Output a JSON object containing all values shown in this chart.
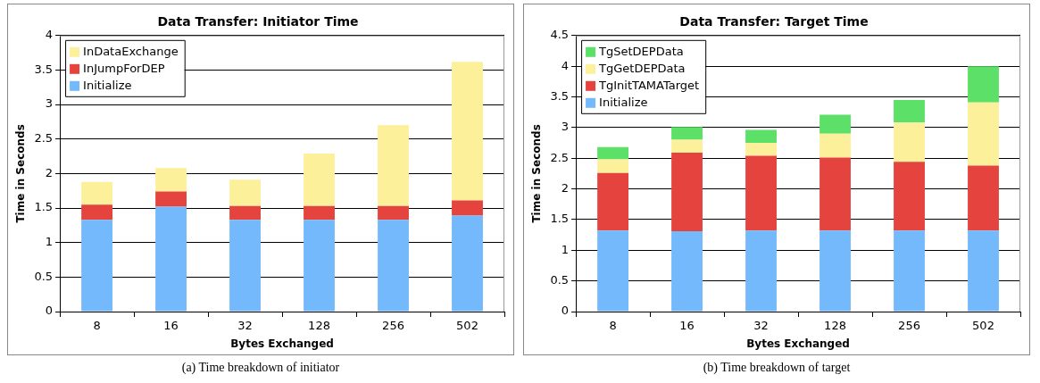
{
  "chart_data": [
    {
      "type": "bar",
      "title": "Data Transfer: Initiator Time",
      "xlabel": "Bytes Exchanged",
      "ylabel": "Time in Seconds",
      "categories": [
        "8",
        "16",
        "32",
        "128",
        "256",
        "502"
      ],
      "stacked": true,
      "ylim": [
        0,
        4
      ],
      "yticks": [
        0,
        0.5,
        1,
        1.5,
        2,
        2.5,
        3,
        3.5,
        4
      ],
      "grid": "y",
      "legend": "top left",
      "annotations": [
        "(a) Time breakdown of initiator"
      ],
      "series": [
        {
          "name": "Initialize",
          "color": "#74b9fc",
          "values": [
            1.33,
            1.52,
            1.33,
            1.33,
            1.33,
            1.39
          ]
        },
        {
          "name": "InJumpForDEP",
          "color": "#e4433e",
          "values": [
            0.22,
            0.22,
            0.2,
            0.2,
            0.2,
            0.22
          ]
        },
        {
          "name": "InDataExchange",
          "color": "#fdf09a",
          "values": [
            0.33,
            0.34,
            0.38,
            0.76,
            1.17,
            2.01
          ]
        }
      ]
    },
    {
      "type": "bar",
      "title": "Data Transfer: Target Time",
      "xlabel": "Bytes Exchanged",
      "ylabel": "Time in Seconds",
      "categories": [
        "8",
        "16",
        "32",
        "128",
        "256",
        "502"
      ],
      "stacked": true,
      "ylim": [
        0,
        4.5
      ],
      "yticks": [
        0,
        0.5,
        1,
        1.5,
        2,
        2.5,
        3,
        3.5,
        4,
        4.5
      ],
      "grid": "y",
      "legend": "top left",
      "annotations": [
        "(b) Time breakdown of target"
      ],
      "series": [
        {
          "name": "Initialize",
          "color": "#74b9fc",
          "values": [
            1.32,
            1.31,
            1.32,
            1.32,
            1.32,
            1.32
          ]
        },
        {
          "name": "TgInitTAMATarget",
          "color": "#e4433e",
          "values": [
            0.94,
            1.28,
            1.22,
            1.19,
            1.12,
            1.06
          ]
        },
        {
          "name": "TgGetDEPData",
          "color": "#fdf09a",
          "values": [
            0.22,
            0.21,
            0.21,
            0.39,
            0.64,
            1.03
          ]
        },
        {
          "name": "TgSetDEPData",
          "color": "#5ce068",
          "values": [
            0.2,
            0.21,
            0.21,
            0.31,
            0.37,
            0.59
          ]
        }
      ]
    }
  ]
}
